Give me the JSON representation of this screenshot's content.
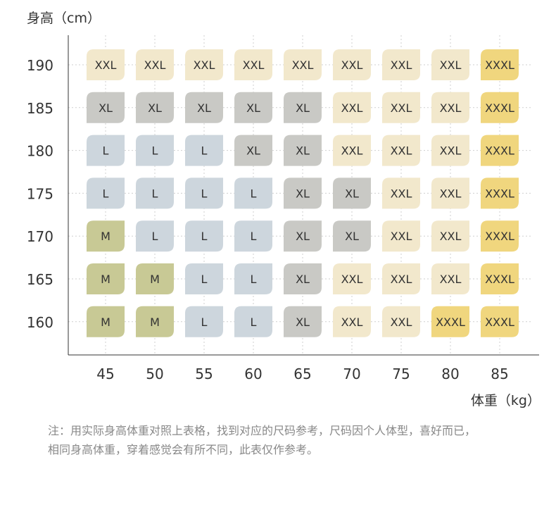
{
  "chart_data": {
    "type": "table",
    "ylabel": "身高（cm）",
    "xlabel": "体重（kg）",
    "x": [
      45,
      50,
      55,
      60,
      65,
      70,
      75,
      80,
      85
    ],
    "y": [
      190,
      185,
      180,
      175,
      170,
      165,
      160
    ],
    "cells": [
      [
        "XXL",
        "XXL",
        "XXL",
        "XXL",
        "XXL",
        "XXL",
        "XXL",
        "XXL",
        "XXXL"
      ],
      [
        "XL",
        "XL",
        "XL",
        "XL",
        "XL",
        "XXL",
        "XXL",
        "XXL",
        "XXXL"
      ],
      [
        "L",
        "L",
        "L",
        "XL",
        "XL",
        "XXL",
        "XXL",
        "XXL",
        "XXXL"
      ],
      [
        "L",
        "L",
        "L",
        "L",
        "XL",
        "XL",
        "XXL",
        "XXL",
        "XXXL"
      ],
      [
        "M",
        "L",
        "L",
        "L",
        "XL",
        "XL",
        "XXL",
        "XXL",
        "XXXL"
      ],
      [
        "M",
        "M",
        "L",
        "L",
        "XL",
        "XXL",
        "XXL",
        "XXL",
        "XXXL"
      ],
      [
        "M",
        "M",
        "L",
        "L",
        "XL",
        "XXL",
        "XXL",
        "XXXL",
        "XXXL"
      ]
    ],
    "size_colors": {
      "M": "#c8c995",
      "L": "#cdd6dd",
      "XL": "#c9c9c5",
      "XXL": "#f2e8cc",
      "XXXL": "#f0d67e"
    },
    "grid": true
  },
  "note": {
    "line1": "注：用实际身高体重对照上表格，找到对应的尺码参考，尺码因个人体型，喜好而已，",
    "line2": "相同身高体重，穿着感觉会有所不同，此表仅作参考。"
  }
}
